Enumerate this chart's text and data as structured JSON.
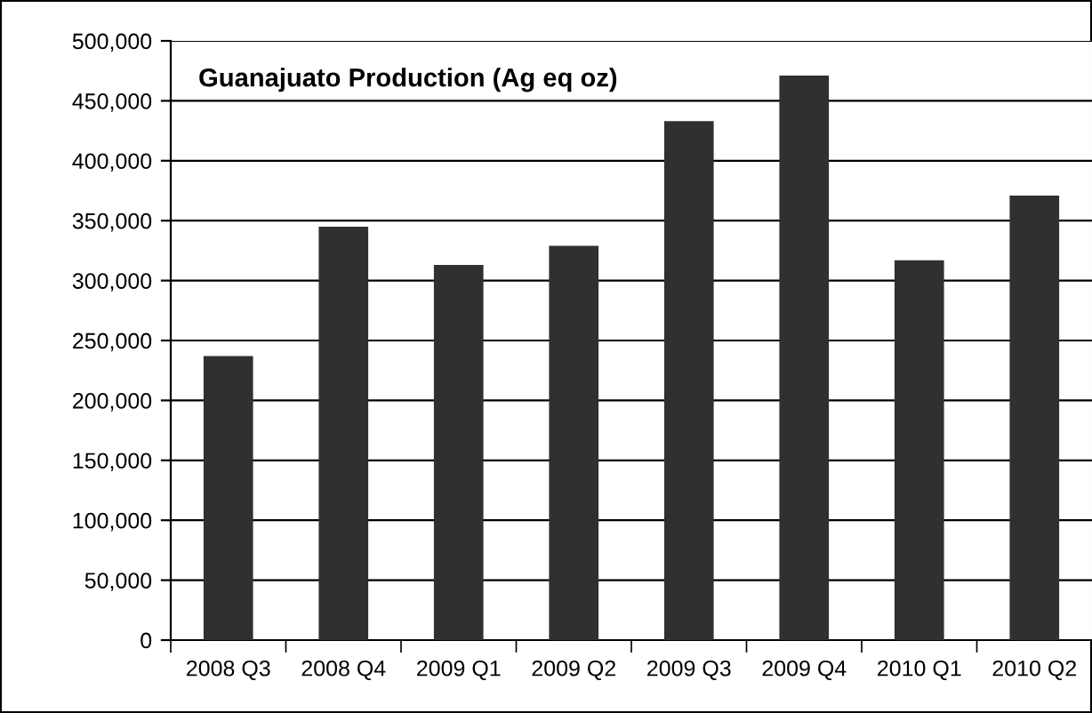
{
  "chart_data": {
    "type": "bar",
    "title": "Guanajuato Production (Ag eq oz)",
    "categories": [
      "2008 Q3",
      "2008 Q4",
      "2009 Q1",
      "2009 Q2",
      "2009 Q3",
      "2009 Q4",
      "2010 Q1",
      "2010 Q2"
    ],
    "values": [
      237000,
      345000,
      313000,
      329000,
      433000,
      471000,
      317000,
      371000
    ],
    "color": "#303030",
    "ylim": [
      0,
      500000
    ],
    "yticks": [
      {
        "value": 0,
        "label": "0"
      },
      {
        "value": 50000,
        "label": "50,000"
      },
      {
        "value": 100000,
        "label": "100,000"
      },
      {
        "value": 150000,
        "label": "150,000"
      },
      {
        "value": 200000,
        "label": "200,000"
      },
      {
        "value": 250000,
        "label": "250,000"
      },
      {
        "value": 300000,
        "label": "300,000"
      },
      {
        "value": 350000,
        "label": "350,000"
      },
      {
        "value": 400000,
        "label": "400,000"
      },
      {
        "value": 450000,
        "label": "450,000"
      },
      {
        "value": 500000,
        "label": "500,000"
      }
    ],
    "grid": "y",
    "legend": false
  }
}
